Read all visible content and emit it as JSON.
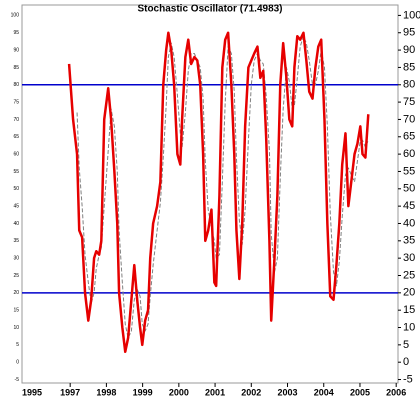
{
  "chart_data": {
    "type": "line",
    "title": "Stochastic Oscillator (71.4983)",
    "x": [
      1996.97,
      1997.08,
      1997.19,
      1997.25,
      1997.33,
      1997.41,
      1997.5,
      1997.58,
      1997.66,
      1997.72,
      1997.8,
      1997.86,
      1997.94,
      1998.05,
      1998.13,
      1998.22,
      1998.3,
      1998.35,
      1998.44,
      1998.52,
      1998.6,
      1998.69,
      1998.77,
      1998.85,
      1998.93,
      1998.99,
      1999.07,
      1999.15,
      1999.21,
      1999.29,
      1999.4,
      1999.49,
      1999.57,
      1999.65,
      1999.71,
      1999.79,
      1999.87,
      1999.96,
      2000.04,
      2000.09,
      2000.18,
      2000.26,
      2000.34,
      2000.43,
      2000.51,
      2000.59,
      2000.67,
      2000.73,
      2000.81,
      2000.9,
      2000.98,
      2001.03,
      2001.12,
      2001.2,
      2001.28,
      2001.36,
      2001.45,
      2001.53,
      2001.59,
      2001.67,
      2001.75,
      2001.83,
      2001.92,
      2002.0,
      2002.08,
      2002.17,
      2002.25,
      2002.33,
      2002.41,
      2002.5,
      2002.55,
      2002.64,
      2002.72,
      2002.8,
      2002.88,
      2002.97,
      2003.05,
      2003.13,
      2003.19,
      2003.27,
      2003.35,
      2003.44,
      2003.52,
      2003.6,
      2003.69,
      2003.77,
      2003.85,
      2003.93,
      2004.02,
      2004.1,
      2004.18,
      2004.27,
      2004.35,
      2004.43,
      2004.51,
      2004.6,
      2004.68,
      2004.76,
      2004.85,
      2004.93,
      2005.01,
      2005.07,
      2005.15,
      2005.23
    ],
    "series": [
      {
        "color": "#e60000",
        "style": "solid",
        "values": [
          86,
          70,
          60,
          38,
          36,
          20,
          12,
          18,
          30,
          32,
          31,
          35,
          70,
          79,
          70,
          55,
          40,
          20,
          10,
          3,
          7,
          18,
          28,
          18,
          10,
          5,
          12,
          15,
          30,
          40,
          45,
          52,
          80,
          90,
          95,
          90,
          80,
          60,
          57,
          70,
          88,
          93,
          86,
          88,
          87,
          80,
          60,
          35,
          38,
          44,
          23,
          22,
          48,
          85,
          93,
          95,
          80,
          60,
          38,
          24,
          40,
          68,
          85,
          87,
          89,
          91,
          82,
          84,
          65,
          35,
          12,
          30,
          48,
          80,
          92,
          82,
          70,
          68,
          85,
          94,
          93,
          95,
          87,
          78,
          76,
          85,
          91,
          93,
          70,
          40,
          19,
          18,
          28,
          40,
          57,
          66,
          45,
          52,
          60,
          63,
          68,
          60,
          59,
          71.4983
        ]
      },
      {
        "color": "#808080",
        "style": "dashed",
        "values": [
          null,
          null,
          72,
          56,
          45,
          31,
          23,
          17,
          20,
          27,
          31,
          33,
          45,
          61,
          73,
          68,
          55,
          38,
          23,
          11,
          7,
          9,
          18,
          21,
          19,
          11,
          9,
          11,
          19,
          28,
          38,
          46,
          59,
          74,
          88,
          92,
          88,
          77,
          66,
          62,
          72,
          84,
          89,
          89,
          87,
          85,
          76,
          58,
          44,
          39,
          35,
          30,
          31,
          52,
          75,
          91,
          89,
          78,
          59,
          41,
          34,
          44,
          64,
          80,
          87,
          89,
          87,
          86,
          77,
          61,
          37,
          26,
          30,
          53,
          73,
          85,
          81,
          73,
          74,
          82,
          91,
          94,
          92,
          87,
          80,
          80,
          84,
          90,
          85,
          68,
          43,
          26,
          22,
          29,
          42,
          54,
          56,
          54,
          52,
          58,
          64,
          64,
          62,
          64
        ]
      }
    ],
    "hlines": [
      80,
      20
    ],
    "hline_color": "#0000cc",
    "xlim": [
      1995.67,
      2006.05
    ],
    "xticks": [
      1995,
      1997,
      1998,
      1999,
      2000,
      2001,
      2002,
      2003,
      2004,
      2005,
      2006
    ],
    "ylim": [
      -6,
      103
    ],
    "yticks": [
      -5,
      0,
      5,
      10,
      15,
      20,
      25,
      30,
      35,
      40,
      45,
      50,
      55,
      60,
      65,
      70,
      75,
      80,
      85,
      90,
      95,
      100
    ]
  }
}
